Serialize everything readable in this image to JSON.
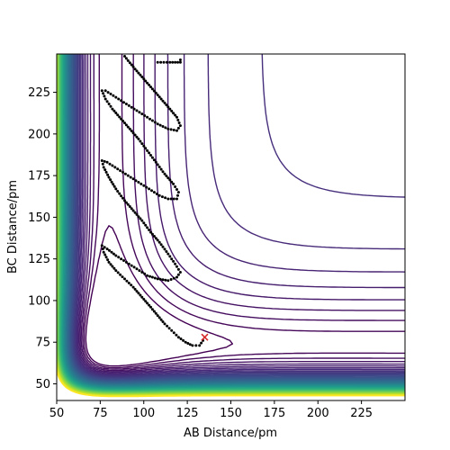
{
  "chart_data": {
    "type": "contour",
    "xlabel": "AB Distance/pm",
    "ylabel": "BC Distance/pm",
    "xlim": [
      50,
      250
    ],
    "ylim": [
      40,
      248
    ],
    "xticks": [
      50,
      75,
      100,
      125,
      150,
      175,
      200,
      225
    ],
    "yticks": [
      50,
      75,
      100,
      125,
      150,
      175,
      200,
      225
    ],
    "colormap": "viridis",
    "contour_levels": 60,
    "colors": {
      "trajectory": "#000000",
      "marker": "#d62728"
    },
    "trajectory": {
      "marker": "dot",
      "points": [
        [
          134,
          76
        ],
        [
          132,
          73
        ],
        [
          128,
          73
        ],
        [
          124,
          75
        ],
        [
          120,
          78
        ],
        [
          116,
          82
        ],
        [
          112,
          86
        ],
        [
          108,
          91
        ],
        [
          104,
          96
        ],
        [
          99,
          102
        ],
        [
          94,
          108
        ],
        [
          89,
          113
        ],
        [
          84,
          118
        ],
        [
          80,
          123
        ],
        [
          77,
          129
        ],
        [
          76,
          133
        ],
        [
          79,
          131
        ],
        [
          84,
          127
        ],
        [
          90,
          123
        ],
        [
          96,
          119
        ],
        [
          102,
          115
        ],
        [
          108,
          113
        ],
        [
          114,
          112
        ],
        [
          119,
          114
        ],
        [
          121,
          117
        ],
        [
          118,
          122
        ],
        [
          114,
          128
        ],
        [
          109,
          135
        ],
        [
          104,
          141
        ],
        [
          99,
          148
        ],
        [
          94,
          154
        ],
        [
          89,
          160
        ],
        [
          84,
          167
        ],
        [
          80,
          174
        ],
        [
          77,
          180
        ],
        [
          76,
          184
        ],
        [
          79,
          183
        ],
        [
          85,
          179
        ],
        [
          91,
          175
        ],
        [
          97,
          171
        ],
        [
          103,
          167
        ],
        [
          109,
          163
        ],
        [
          114,
          161
        ],
        [
          119,
          161
        ],
        [
          120,
          165
        ],
        [
          117,
          170
        ],
        [
          112,
          176
        ],
        [
          107,
          183
        ],
        [
          102,
          190
        ],
        [
          97,
          197
        ],
        [
          92,
          203
        ],
        [
          87,
          209
        ],
        [
          82,
          215
        ],
        [
          78,
          221
        ],
        [
          76,
          226
        ],
        [
          78,
          226
        ],
        [
          84,
          222
        ],
        [
          90,
          218
        ],
        [
          96,
          214
        ],
        [
          102,
          210
        ],
        [
          108,
          206
        ],
        [
          114,
          203
        ],
        [
          119,
          202
        ],
        [
          121,
          205
        ],
        [
          119,
          210
        ],
        [
          115,
          215
        ],
        [
          110,
          221
        ],
        [
          105,
          227
        ],
        [
          100,
          233
        ],
        [
          95,
          239
        ],
        [
          91,
          244
        ],
        [
          88,
          248
        ]
      ],
      "top_segment": [
        [
          108,
          243
        ],
        [
          115,
          243
        ],
        [
          121,
          243
        ],
        [
          121,
          246
        ]
      ]
    },
    "marker_point": {
      "x": 135,
      "y": 78,
      "symbol": "x"
    }
  }
}
